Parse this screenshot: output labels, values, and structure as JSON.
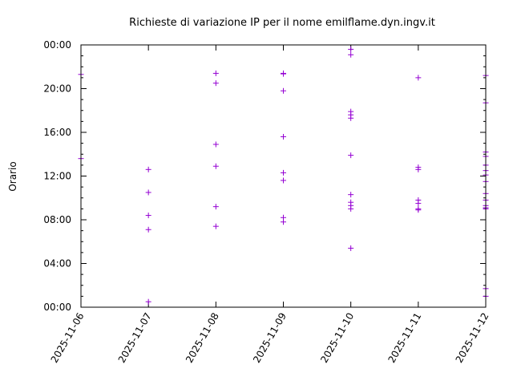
{
  "chart_data": {
    "type": "scatter",
    "title": "Richieste di variazione IP per il nome emilflame.dyn.ingv.it",
    "xlabel": "",
    "ylabel": "Orario",
    "x_tick_labels": [
      "2025-11-06",
      "2025-11-07",
      "2025-11-08",
      "2025-11-09",
      "2025-11-10",
      "2025-11-11",
      "2025-11-12"
    ],
    "y_tick_labels": [
      "00:00",
      "04:00",
      "08:00",
      "12:00",
      "16:00",
      "20:00",
      "00:00"
    ],
    "xlim_days": [
      0,
      6
    ],
    "ylim_hours": [
      0,
      24
    ],
    "marker": "+",
    "color": "#9400d3",
    "axis_color": "#000000",
    "points": [
      {
        "day": 0.0,
        "hour": 21.3
      },
      {
        "day": 0.0,
        "hour": 13.6
      },
      {
        "day": 1.0,
        "hour": 12.6
      },
      {
        "day": 1.0,
        "hour": 10.5
      },
      {
        "day": 1.0,
        "hour": 8.4
      },
      {
        "day": 1.0,
        "hour": 7.1
      },
      {
        "day": 1.0,
        "hour": 0.5
      },
      {
        "day": 2.0,
        "hour": 21.4
      },
      {
        "day": 2.0,
        "hour": 20.5
      },
      {
        "day": 2.0,
        "hour": 14.9
      },
      {
        "day": 2.0,
        "hour": 12.9
      },
      {
        "day": 2.0,
        "hour": 9.2
      },
      {
        "day": 2.0,
        "hour": 7.4
      },
      {
        "day": 3.0,
        "hour": 21.4
      },
      {
        "day": 3.0,
        "hour": 21.35
      },
      {
        "day": 3.0,
        "hour": 19.8
      },
      {
        "day": 3.0,
        "hour": 15.6
      },
      {
        "day": 3.0,
        "hour": 12.3
      },
      {
        "day": 3.0,
        "hour": 11.6
      },
      {
        "day": 3.0,
        "hour": 8.2
      },
      {
        "day": 3.0,
        "hour": 7.8
      },
      {
        "day": 4.0,
        "hour": 23.6
      },
      {
        "day": 4.0,
        "hour": 23.1
      },
      {
        "day": 4.0,
        "hour": 17.9
      },
      {
        "day": 4.0,
        "hour": 17.6
      },
      {
        "day": 4.0,
        "hour": 17.3
      },
      {
        "day": 4.0,
        "hour": 13.9
      },
      {
        "day": 4.0,
        "hour": 10.3
      },
      {
        "day": 4.0,
        "hour": 9.6
      },
      {
        "day": 4.0,
        "hour": 9.3
      },
      {
        "day": 4.0,
        "hour": 9.0
      },
      {
        "day": 4.0,
        "hour": 5.4
      },
      {
        "day": 5.0,
        "hour": 21.0
      },
      {
        "day": 5.0,
        "hour": 12.8
      },
      {
        "day": 5.0,
        "hour": 12.6
      },
      {
        "day": 5.0,
        "hour": 9.8
      },
      {
        "day": 5.0,
        "hour": 9.5
      },
      {
        "day": 5.0,
        "hour": 9.0
      },
      {
        "day": 5.0,
        "hour": 8.9
      },
      {
        "day": 6.0,
        "hour": 21.2
      },
      {
        "day": 6.0,
        "hour": 18.7
      },
      {
        "day": 6.0,
        "hour": 14.2
      },
      {
        "day": 6.0,
        "hour": 13.8
      },
      {
        "day": 6.0,
        "hour": 13.0
      },
      {
        "day": 6.0,
        "hour": 12.5
      },
      {
        "day": 6.0,
        "hour": 12.1
      },
      {
        "day": 6.0,
        "hour": 11.5
      },
      {
        "day": 6.0,
        "hour": 10.4
      },
      {
        "day": 6.0,
        "hour": 9.8
      },
      {
        "day": 6.0,
        "hour": 9.3
      },
      {
        "day": 6.0,
        "hour": 9.1
      },
      {
        "day": 6.0,
        "hour": 9.0
      },
      {
        "day": 6.0,
        "hour": 1.7
      },
      {
        "day": 6.0,
        "hour": 1.0
      }
    ]
  }
}
